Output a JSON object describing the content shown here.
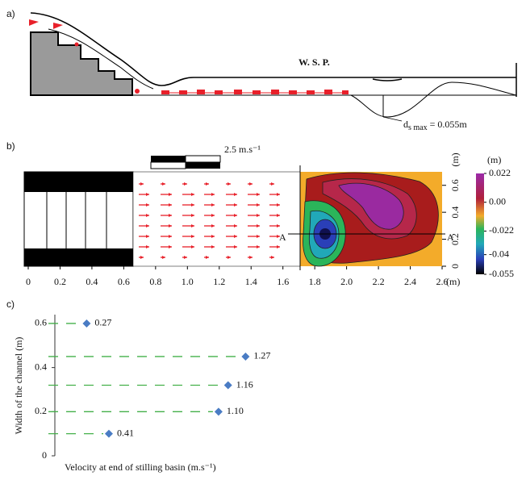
{
  "panel_a": {
    "label": "a)",
    "wsp": "W. S. P.",
    "ds_symbol": "d",
    "ds_subscript": "s max",
    "ds_value": "= 0.055m"
  },
  "chart_data": [
    {
      "type": "contour",
      "panel_label": "b)",
      "scale_label": "2.5 m.s⁻¹",
      "section_label": "A",
      "x_unit": "(m)",
      "y_unit": "(m)",
      "xlim": [
        0,
        2.6
      ],
      "xticks": [
        0,
        0.2,
        0.4,
        0.6,
        0.8,
        {
          "value": 1,
          "label": "1.0"
        },
        1.2,
        1.4,
        1.6,
        1.8,
        {
          "value": 2,
          "label": "2.0"
        },
        2.2,
        2.4,
        2.6
      ],
      "ylim": [
        0,
        0.7
      ],
      "yticks": [
        0,
        0.2,
        0.4,
        0.6
      ],
      "colorbar_unit": "(m)",
      "colorbar_lim": [
        -0.055,
        0.022
      ],
      "colorbar_ticks": [
        0.022,
        {
          "value": 0,
          "label": "0.00"
        },
        -0.022,
        -0.04,
        -0.055
      ]
    },
    {
      "type": "scatter",
      "panel_label": "c)",
      "x_label": "Velocity at end of stilling basin  (m.s⁻¹)",
      "y_label": "Width of the channel (m)",
      "y": [
        0.6,
        0.45,
        0.32,
        0.2,
        0.1
      ],
      "values": [
        0.27,
        1.27,
        1.16,
        1.1,
        0.41
      ],
      "value_labels": [
        "0.27",
        "1.27",
        "1.16",
        "1.10",
        "0.41"
      ],
      "color": "#4a7cc4",
      "line_color": "#44b04a",
      "xlim": [
        0.07,
        1.4
      ],
      "ylim": [
        0,
        0.64
      ],
      "yticks": [
        0,
        0.2,
        0.4,
        0.6
      ]
    }
  ]
}
